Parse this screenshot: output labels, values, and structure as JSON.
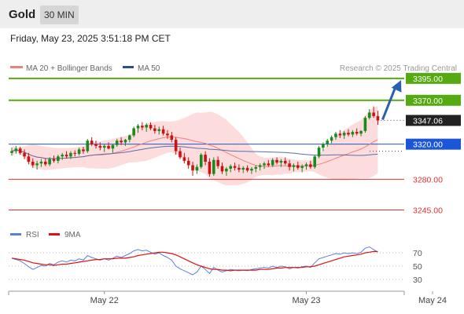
{
  "header": {
    "instrument": "Gold",
    "timeframe": "30 MIN"
  },
  "datetime": "Friday, May 23, 2025 3:51:18 PM CET",
  "legend": {
    "bollinger": "MA 20 + Bollinger Bands",
    "ma50": "MA 50",
    "source": "Research © 2025 Trading Central"
  },
  "rsi_legend": {
    "rsi": "RSI",
    "ma": "9MA"
  },
  "colors": {
    "candle_up": "#1a8a1a",
    "candle_down": "#cc1111",
    "resistance": "#55aa11",
    "pivot": "#1b56d6",
    "support": "#e03030",
    "ma20": "#f08080",
    "ma50": "#5a6fa8",
    "band_fill": "#fbd0d0",
    "rsi_line": "#5b7fd9",
    "rsi_ma": "#dd1111",
    "arrow": "#2a5fad",
    "last_price": "#222222"
  },
  "chart_data": [
    {
      "type": "candlestick",
      "title": "Gold",
      "timeframe": "30 MIN",
      "ylim": [
        3232,
        3402
      ],
      "x_tick_labels": [
        {
          "label": "May 22",
          "index": 22
        },
        {
          "label": "May 23",
          "index": 70
        },
        {
          "label": "May 24",
          "index": 100
        }
      ],
      "last_price": {
        "label": "3347.06",
        "value": 3347.06
      },
      "levels": [
        {
          "label": "3395.00",
          "value": 3395,
          "kind": "resistance"
        },
        {
          "label": "3370.00",
          "value": 3370,
          "kind": "resistance"
        },
        {
          "label": "3320.00",
          "value": 3320,
          "kind": "pivot"
        },
        {
          "label": "3280.00",
          "value": 3280,
          "kind": "support"
        },
        {
          "label": "3245.00",
          "value": 3245,
          "kind": "support"
        }
      ],
      "ohlc": [
        [
          3310,
          3316,
          3307,
          3312
        ],
        [
          3312,
          3318,
          3309,
          3315
        ],
        [
          3315,
          3317,
          3308,
          3310
        ],
        [
          3310,
          3314,
          3303,
          3306
        ],
        [
          3306,
          3310,
          3297,
          3300
        ],
        [
          3300,
          3304,
          3293,
          3296
        ],
        [
          3296,
          3301,
          3291,
          3298
        ],
        [
          3298,
          3303,
          3294,
          3300
        ],
        [
          3300,
          3304,
          3295,
          3297
        ],
        [
          3297,
          3305,
          3295,
          3303
        ],
        [
          3303,
          3307,
          3299,
          3301
        ],
        [
          3301,
          3308,
          3298,
          3306
        ],
        [
          3306,
          3310,
          3302,
          3308
        ],
        [
          3308,
          3312,
          3304,
          3306
        ],
        [
          3306,
          3312,
          3303,
          3310
        ],
        [
          3310,
          3313,
          3306,
          3309
        ],
        [
          3309,
          3316,
          3307,
          3314
        ],
        [
          3314,
          3317,
          3309,
          3312
        ],
        [
          3312,
          3326,
          3310,
          3324
        ],
        [
          3324,
          3328,
          3318,
          3320
        ],
        [
          3320,
          3324,
          3315,
          3318
        ],
        [
          3318,
          3322,
          3313,
          3316
        ],
        [
          3316,
          3320,
          3311,
          3318
        ],
        [
          3318,
          3322,
          3314,
          3315
        ],
        [
          3315,
          3320,
          3310,
          3319
        ],
        [
          3319,
          3326,
          3317,
          3324
        ],
        [
          3324,
          3328,
          3319,
          3322
        ],
        [
          3322,
          3326,
          3318,
          3325
        ],
        [
          3325,
          3331,
          3322,
          3330
        ],
        [
          3330,
          3340,
          3328,
          3338
        ],
        [
          3338,
          3343,
          3333,
          3341
        ],
        [
          3341,
          3345,
          3336,
          3339
        ],
        [
          3339,
          3344,
          3334,
          3342
        ],
        [
          3342,
          3345,
          3336,
          3338
        ],
        [
          3338,
          3342,
          3332,
          3335
        ],
        [
          3335,
          3340,
          3331,
          3337
        ],
        [
          3337,
          3341,
          3330,
          3332
        ],
        [
          3332,
          3336,
          3326,
          3330
        ],
        [
          3330,
          3334,
          3322,
          3325
        ],
        [
          3325,
          3328,
          3308,
          3312
        ],
        [
          3312,
          3316,
          3303,
          3305
        ],
        [
          3305,
          3310,
          3298,
          3301
        ],
        [
          3301,
          3305,
          3292,
          3296
        ],
        [
          3296,
          3300,
          3284,
          3290
        ],
        [
          3290,
          3297,
          3286,
          3294
        ],
        [
          3294,
          3310,
          3292,
          3308
        ],
        [
          3308,
          3312,
          3296,
          3300
        ],
        [
          3300,
          3304,
          3283,
          3286
        ],
        [
          3286,
          3305,
          3284,
          3302
        ],
        [
          3302,
          3306,
          3292,
          3295
        ],
        [
          3295,
          3299,
          3286,
          3289
        ],
        [
          3289,
          3294,
          3284,
          3292
        ],
        [
          3292,
          3297,
          3288,
          3295
        ],
        [
          3295,
          3299,
          3290,
          3293
        ],
        [
          3293,
          3297,
          3288,
          3291
        ],
        [
          3291,
          3295,
          3287,
          3293
        ],
        [
          3293,
          3296,
          3288,
          3290
        ],
        [
          3290,
          3294,
          3286,
          3292
        ],
        [
          3292,
          3296,
          3288,
          3294
        ],
        [
          3294,
          3298,
          3290,
          3296
        ],
        [
          3296,
          3300,
          3292,
          3298
        ],
        [
          3298,
          3302,
          3294,
          3296
        ],
        [
          3296,
          3304,
          3294,
          3302
        ],
        [
          3302,
          3305,
          3297,
          3299
        ],
        [
          3299,
          3303,
          3294,
          3301
        ],
        [
          3301,
          3305,
          3296,
          3298
        ],
        [
          3298,
          3302,
          3290,
          3294
        ],
        [
          3294,
          3298,
          3289,
          3296
        ],
        [
          3296,
          3300,
          3291,
          3293
        ],
        [
          3293,
          3297,
          3288,
          3295
        ],
        [
          3295,
          3299,
          3291,
          3297
        ],
        [
          3297,
          3301,
          3292,
          3294
        ],
        [
          3294,
          3308,
          3292,
          3306
        ],
        [
          3306,
          3318,
          3304,
          3316
        ],
        [
          3316,
          3322,
          3312,
          3320
        ],
        [
          3320,
          3326,
          3317,
          3324
        ],
        [
          3324,
          3330,
          3321,
          3328
        ],
        [
          3328,
          3334,
          3325,
          3332
        ],
        [
          3332,
          3336,
          3327,
          3330
        ],
        [
          3330,
          3335,
          3326,
          3333
        ],
        [
          3333,
          3337,
          3329,
          3331
        ],
        [
          3331,
          3336,
          3328,
          3334
        ],
        [
          3334,
          3338,
          3330,
          3332
        ],
        [
          3332,
          3336,
          3329,
          3335
        ],
        [
          3335,
          3352,
          3333,
          3350
        ],
        [
          3350,
          3360,
          3348,
          3356
        ],
        [
          3356,
          3363,
          3350,
          3352
        ],
        [
          3352,
          3358,
          3342,
          3347
        ]
      ]
    },
    {
      "type": "line",
      "title": "RSI",
      "ylim": [
        18,
        82
      ],
      "y_tick_labels": [
        {
          "label": "70",
          "value": 70
        },
        {
          "label": "50",
          "value": 50
        },
        {
          "label": "30",
          "value": 30
        }
      ],
      "series": [
        {
          "name": "RSI",
          "values": [
            62,
            60,
            58,
            54,
            49,
            45,
            48,
            51,
            50,
            54,
            52,
            56,
            58,
            56,
            59,
            58,
            61,
            59,
            66,
            63,
            61,
            59,
            61,
            59,
            62,
            65,
            63,
            66,
            69,
            73,
            75,
            73,
            74,
            71,
            68,
            70,
            66,
            63,
            59,
            50,
            46,
            43,
            40,
            37,
            41,
            50,
            45,
            39,
            48,
            44,
            41,
            43,
            45,
            44,
            43,
            44,
            43,
            45,
            46,
            47,
            48,
            47,
            50,
            48,
            50,
            49,
            46,
            48,
            47,
            49,
            50,
            48,
            55,
            61,
            63,
            65,
            67,
            69,
            68,
            70,
            69,
            70,
            69,
            71,
            77,
            79,
            75,
            71
          ]
        },
        {
          "name": "9MA",
          "values": [
            62,
            61,
            60,
            59,
            57,
            55,
            54,
            53,
            52,
            52,
            51,
            52,
            53,
            53,
            54,
            55,
            56,
            57,
            58,
            59,
            60,
            60,
            61,
            61,
            61,
            62,
            62,
            62,
            63,
            64,
            66,
            67,
            68,
            69,
            70,
            71,
            71,
            70,
            69,
            67,
            64,
            61,
            58,
            55,
            52,
            50,
            48,
            46,
            45,
            45,
            44,
            44,
            43,
            44,
            44,
            44,
            44,
            44,
            44,
            45,
            45,
            45,
            46,
            47,
            47,
            48,
            48,
            48,
            48,
            48,
            49,
            49,
            50,
            52,
            54,
            56,
            58,
            60,
            62,
            64,
            65,
            66,
            67,
            68,
            70,
            71,
            72,
            72
          ]
        }
      ]
    }
  ]
}
